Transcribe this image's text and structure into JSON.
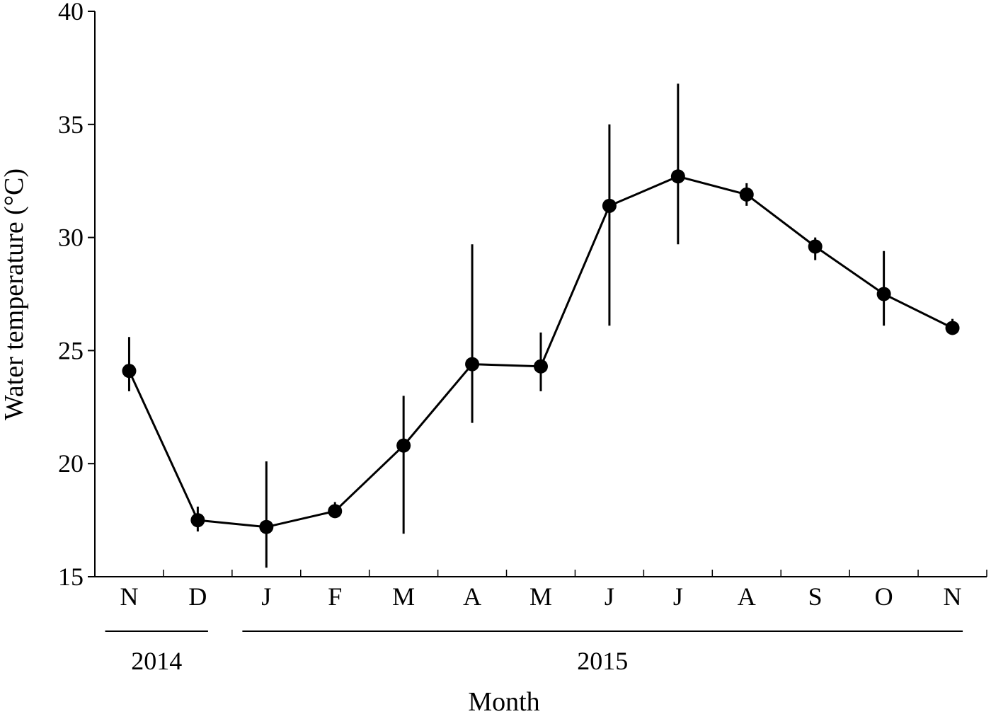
{
  "chart_data": {
    "type": "line",
    "xlabel": "Month",
    "ylabel": "Water temperature (°C)",
    "ylim": [
      15,
      40
    ],
    "yticks": [
      "15",
      "20",
      "25",
      "30",
      "35",
      "40"
    ],
    "categories": [
      "N",
      "D",
      "J",
      "F",
      "M",
      "A",
      "M",
      "J",
      "J",
      "A",
      "S",
      "O",
      "N"
    ],
    "series": [
      {
        "values": [
          24.1,
          17.5,
          17.2,
          17.9,
          20.8,
          24.4,
          24.3,
          31.4,
          32.7,
          31.9,
          29.6,
          27.5,
          26.0
        ],
        "error_low": [
          23.2,
          17.0,
          15.4,
          17.6,
          16.9,
          21.8,
          23.2,
          26.1,
          29.7,
          31.4,
          29.0,
          26.1,
          25.7
        ],
        "error_high": [
          25.6,
          18.1,
          20.1,
          18.3,
          23.0,
          29.7,
          25.8,
          35.0,
          36.8,
          32.4,
          30.0,
          29.4,
          26.4
        ]
      }
    ],
    "year_groups": [
      {
        "label": "2014",
        "from": 0,
        "to": 1
      },
      {
        "label": "2015",
        "from": 2,
        "to": 12
      }
    ],
    "grid": false,
    "legend": "none"
  }
}
